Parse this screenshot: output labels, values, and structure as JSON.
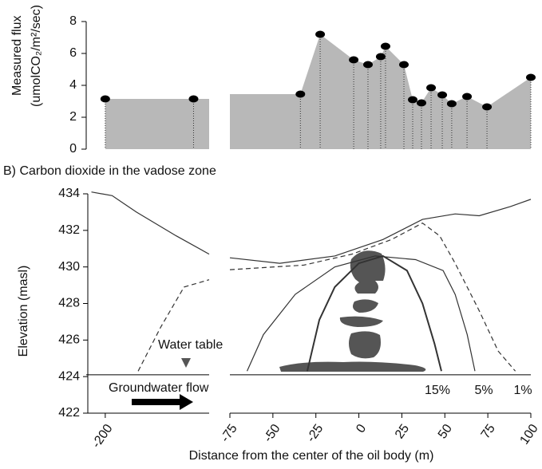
{
  "chart_data": [
    {
      "type": "area",
      "y_label_lines": [
        "Measured flux",
        "(umolCO₂/m²/sec)"
      ],
      "x_segments": [
        [
          -211,
          -140
        ],
        [
          -75,
          100
        ]
      ],
      "ylim": [
        0,
        8
      ],
      "yticks": [
        0,
        2,
        4,
        6,
        8
      ],
      "color": "#b8b8b8",
      "point_color": "#000000",
      "x": [
        -200,
        -149,
        -34,
        -22.5,
        -3,
        5.3,
        12.7,
        15.5,
        26.2,
        31.3,
        36.4,
        42,
        48.5,
        54,
        62.9,
        74.5,
        100
      ],
      "values": [
        3.15,
        3.15,
        3.45,
        7.2,
        5.6,
        5.3,
        5.8,
        6.45,
        5.3,
        3.1,
        2.9,
        3.85,
        3.4,
        2.85,
        3.3,
        2.65,
        4.5
      ]
    },
    {
      "type": "line",
      "title": "B) Carbon dioxide in the vadose zone",
      "y_label": "Elevation (masl)",
      "x_label": "Distance from the center of the oil body (m)",
      "x_segments": [
        [
          -211,
          -140
        ],
        [
          -75,
          100
        ]
      ],
      "xticks": [
        -200,
        -75,
        -50,
        -25,
        0,
        25,
        50,
        75,
        100
      ],
      "ylim": [
        422,
        434
      ],
      "yticks": [
        422,
        424,
        426,
        428,
        430,
        432,
        434
      ],
      "water_table": 424.1,
      "annotations": [
        "Water table",
        "Groundwater flow",
        "15%",
        "5%",
        "1%"
      ],
      "lines": [
        {
          "style": "solid",
          "x": [
            -208,
            -196,
            -182,
            -159,
            -140
          ],
          "y": [
            434.1,
            433.9,
            433.0,
            431.7,
            430.7
          ]
        },
        {
          "style": "solid",
          "x": [
            -75,
            -46,
            -14,
            14,
            37,
            56,
            70,
            88,
            100
          ],
          "y": [
            430.5,
            430.2,
            430.6,
            431.5,
            432.6,
            432.9,
            432.8,
            433.3,
            433.7
          ]
        },
        {
          "style": "dashed",
          "x": [
            -181,
            -168,
            -154.5,
            -140
          ],
          "y": [
            424.3,
            426.7,
            428.9,
            429.3
          ]
        },
        {
          "style": "dashed",
          "x": [
            -75,
            -32,
            -4,
            19,
            37,
            47,
            56,
            70,
            81,
            91
          ],
          "y": [
            429.85,
            430.1,
            430.7,
            431.5,
            432.4,
            431.7,
            430.2,
            427.6,
            425.4,
            424.3
          ]
        },
        {
          "style": "thick",
          "x": [
            -30,
            -23,
            -14,
            0,
            14,
            28,
            37,
            44,
            48
          ],
          "y": [
            424.3,
            427.1,
            428.9,
            430.2,
            430.6,
            429.8,
            428.0,
            425.8,
            424.3
          ]
        },
        {
          "style": "solid",
          "x": [
            -65,
            -55.5,
            -37,
            -14,
            9.5,
            33,
            49,
            56,
            63,
            67.5
          ],
          "y": [
            424.3,
            426.3,
            428.5,
            430.0,
            430.6,
            430.4,
            429.8,
            428.5,
            426.3,
            424.3
          ]
        }
      ]
    }
  ]
}
